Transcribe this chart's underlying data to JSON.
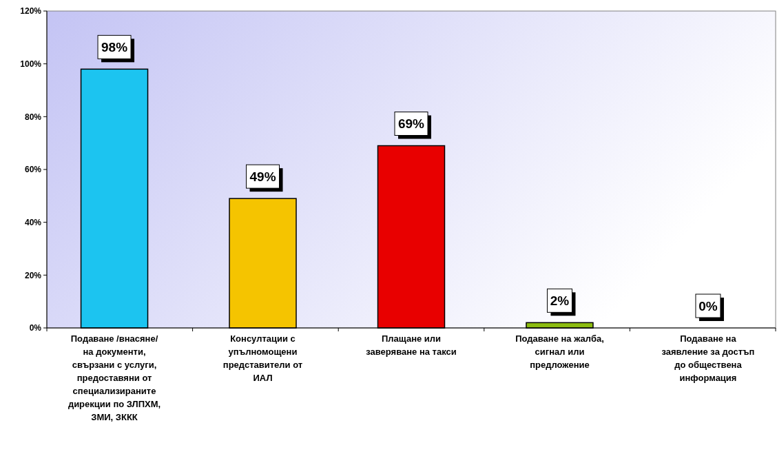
{
  "chart_data": {
    "type": "bar",
    "categories": [
      "Подаване /внасяне/ на документи, свързани с услуги, предоставяни от специализираните дирекции по ЗЛПХМ, ЗМИ, ЗККК",
      "Консултации с упълномощени представители  от ИАЛ",
      "Плащане или заверяване на такси",
      "Подаване на жалба, сигнал или предложение",
      "Подаване на заявление за достъп до обществена информация"
    ],
    "values": [
      98,
      49,
      69,
      2,
      0
    ],
    "colors": [
      "#1cc4f0",
      "#f5c400",
      "#e80000",
      "#8cbc10",
      "#8080c0"
    ],
    "value_labels": [
      "98%",
      "49%",
      "69%",
      "2%",
      "0%"
    ],
    "ylim": [
      0,
      120
    ],
    "yticks": [
      {
        "value": 0,
        "label": "0%"
      },
      {
        "value": 20,
        "label": "20%"
      },
      {
        "value": 40,
        "label": "40%"
      },
      {
        "value": 60,
        "label": "60%"
      },
      {
        "value": 80,
        "label": "80%"
      },
      {
        "value": 100,
        "label": "100%"
      },
      {
        "value": 120,
        "label": "120%"
      }
    ],
    "grid": false
  }
}
